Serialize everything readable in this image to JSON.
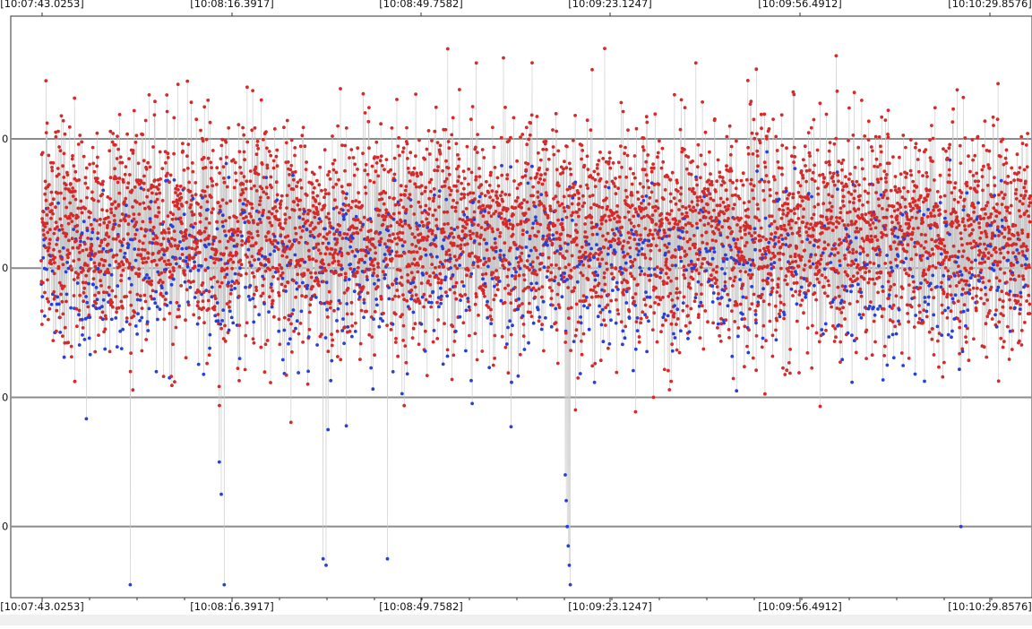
{
  "chart_data": {
    "type": "scatter",
    "title": "",
    "xlabel": "",
    "ylabel": "",
    "x_tick_labels": [
      "[10:07:43.0253]",
      "[10:08:16.3917]",
      "[10:08:49.7582]",
      "[10:09:23.1247]",
      "[10:09:56.4912]",
      "[10:10:29.8576]"
    ],
    "y_tick_labels": [
      "0",
      "0",
      "0",
      "0"
    ],
    "y_reference_lines": [
      1.0,
      0.0,
      -1.0,
      -2.0
    ],
    "ylim": [
      -2.55,
      1.95
    ],
    "grid": true,
    "legend": "none",
    "colors": {
      "above_mean": "#d62a2a",
      "below_mean": "#2740d6",
      "connector": "#c8c8c8",
      "reference_line": "#8c8c8c",
      "axis": "#333333"
    },
    "series": [
      {
        "point_count": 6000,
        "mean": 0.2,
        "stdev": 0.42,
        "max": 1.7,
        "min": -2.45,
        "outliers": [
          {
            "x_fraction": 0.09,
            "y": -2.45
          },
          {
            "x_fraction": 0.18,
            "y": -1.5
          },
          {
            "x_fraction": 0.182,
            "y": -1.75
          },
          {
            "x_fraction": 0.185,
            "y": -2.45
          },
          {
            "x_fraction": 0.285,
            "y": -2.25
          },
          {
            "x_fraction": 0.288,
            "y": -2.3
          },
          {
            "x_fraction": 0.29,
            "y": -1.25
          },
          {
            "x_fraction": 0.35,
            "y": -2.25
          },
          {
            "x_fraction": 0.53,
            "y": -1.6
          },
          {
            "x_fraction": 0.531,
            "y": -1.8
          },
          {
            "x_fraction": 0.532,
            "y": -2.0
          },
          {
            "x_fraction": 0.533,
            "y": -2.15
          },
          {
            "x_fraction": 0.534,
            "y": -2.3
          },
          {
            "x_fraction": 0.535,
            "y": -2.45
          },
          {
            "x_fraction": 0.93,
            "y": -2.0
          }
        ]
      }
    ]
  }
}
